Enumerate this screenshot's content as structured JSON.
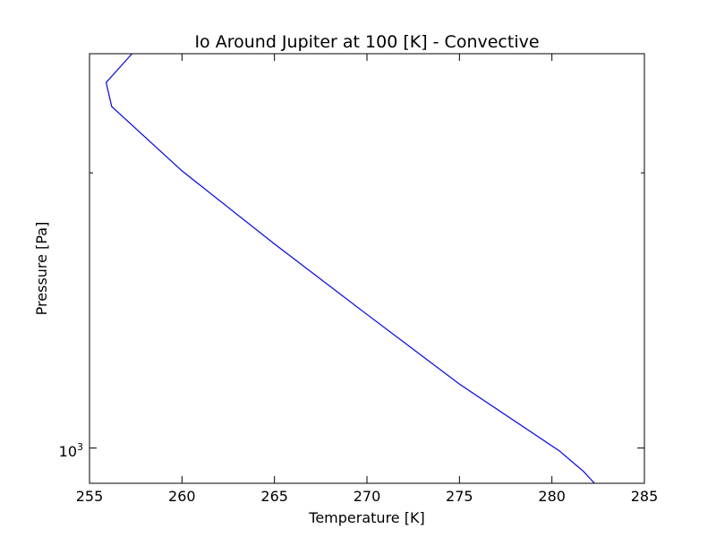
{
  "chart_data": {
    "type": "line",
    "title": "Io Around Jupiter at 100 [K] - Convective",
    "xlabel": "Temperature [K]",
    "ylabel": "Pressure [Pa]",
    "xlim": [
      255,
      285
    ],
    "ylim": [
      915,
      2700
    ],
    "yscale": "log",
    "x_ticks": [
      "255",
      "260",
      "265",
      "270",
      "275",
      "280",
      "285"
    ],
    "y_tick_label": {
      "base": "10",
      "exponent": "3"
    },
    "grid": false,
    "series": [
      {
        "color": "#0000ff",
        "x": [
          282.3,
          281.7,
          280.4,
          275,
          270,
          265,
          260,
          256.2,
          255.9,
          257.3
        ],
        "y": [
          915,
          943,
          993,
          1175,
          1400,
          1672,
          2010,
          2364,
          2511,
          2700
        ]
      }
    ]
  }
}
